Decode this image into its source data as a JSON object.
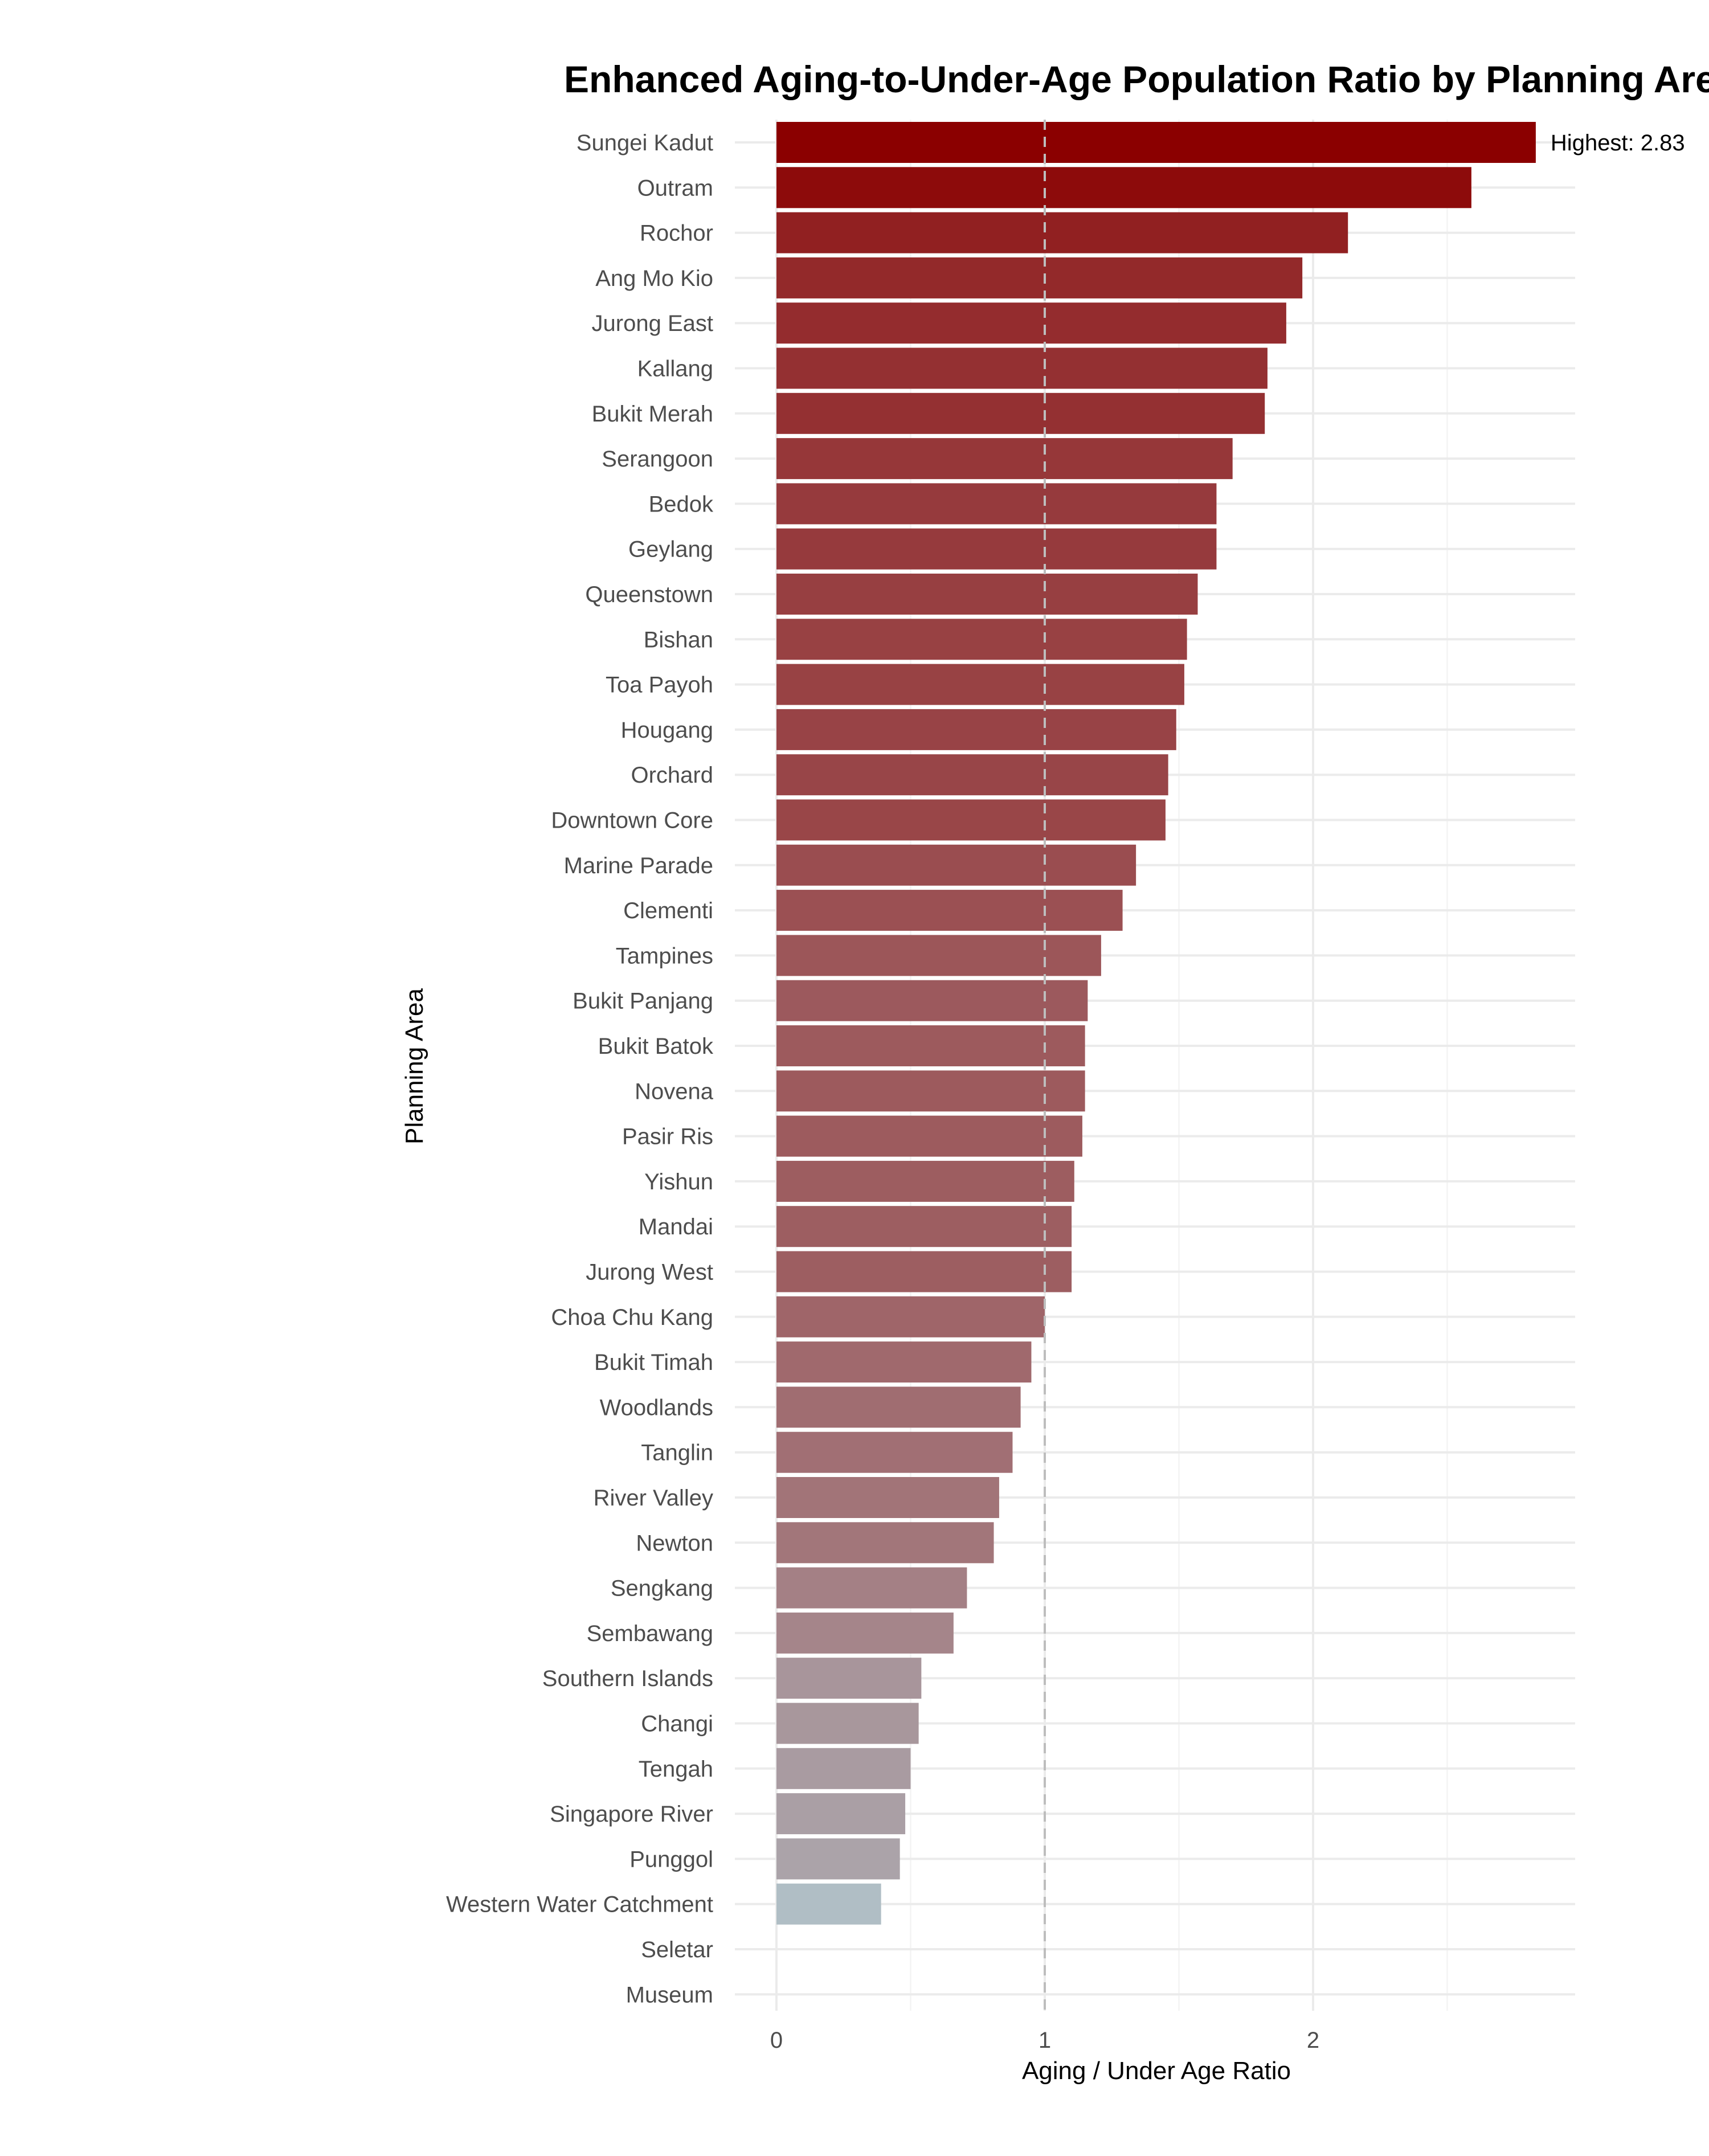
{
  "chart_data": {
    "type": "bar",
    "orientation": "horizontal",
    "title": "Enhanced Aging-to-Under-Age Population Ratio by Planning Area",
    "xlabel": "Aging / Under Age Ratio",
    "ylabel": "Planning Area",
    "xlim": [
      0,
      2.98
    ],
    "xticks": [
      0,
      1,
      2
    ],
    "grid": true,
    "reference_line": {
      "x": 1,
      "style": "dashed",
      "color": "#bdbdbd"
    },
    "annotation": {
      "text": "Highest: 2.83",
      "category": "Sungei Kadut"
    },
    "color_scale": {
      "high": "#8b0000",
      "low": "#b0bec5"
    },
    "categories": [
      "Sungei Kadut",
      "Outram",
      "Rochor",
      "Ang Mo Kio",
      "Jurong East",
      "Kallang",
      "Bukit Merah",
      "Serangoon",
      "Bedok",
      "Geylang",
      "Queenstown",
      "Bishan",
      "Toa Payoh",
      "Hougang",
      "Orchard",
      "Downtown Core",
      "Marine Parade",
      "Clementi",
      "Tampines",
      "Bukit Panjang",
      "Bukit Batok",
      "Novena",
      "Pasir Ris",
      "Yishun",
      "Mandai",
      "Jurong West",
      "Choa Chu Kang",
      "Bukit Timah",
      "Woodlands",
      "Tanglin",
      "River Valley",
      "Newton",
      "Sengkang",
      "Sembawang",
      "Southern Islands",
      "Changi",
      "Tengah",
      "Singapore River",
      "Punggol",
      "Western Water Catchment",
      "Seletar",
      "Museum"
    ],
    "values": [
      2.83,
      2.59,
      2.13,
      1.96,
      1.9,
      1.83,
      1.82,
      1.7,
      1.64,
      1.64,
      1.57,
      1.53,
      1.52,
      1.49,
      1.46,
      1.45,
      1.34,
      1.29,
      1.21,
      1.16,
      1.15,
      1.15,
      1.14,
      1.11,
      1.1,
      1.1,
      1.0,
      0.95,
      0.91,
      0.88,
      0.83,
      0.81,
      0.71,
      0.66,
      0.54,
      0.53,
      0.5,
      0.48,
      0.46,
      0.39,
      0,
      0
    ]
  }
}
